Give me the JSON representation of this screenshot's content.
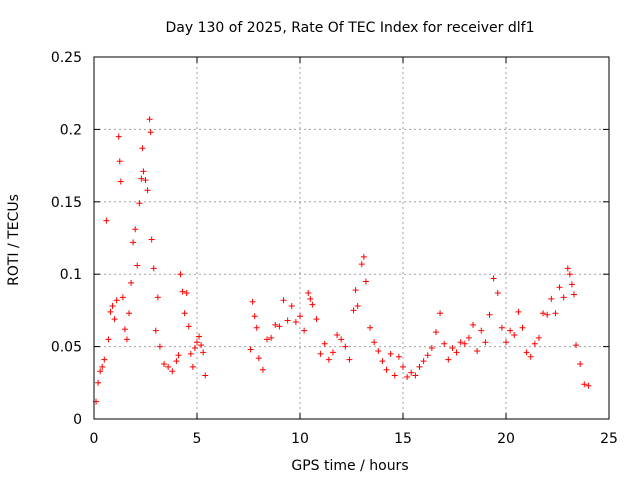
{
  "chart_data": {
    "type": "scatter",
    "title": "Day 130 of 2025, Rate Of TEC Index for receiver dlf1",
    "xlabel": "GPS time / hours",
    "ylabel": "ROTI / TECUs",
    "xlim": [
      0,
      25
    ],
    "ylim": [
      0,
      0.25
    ],
    "xticks": [
      "0",
      "5",
      "10",
      "15",
      "20",
      "25"
    ],
    "yticks": [
      "0",
      "0.05",
      "0.1",
      "0.15",
      "0.2",
      "0.25"
    ],
    "grid": true,
    "marker": "+",
    "color": "#ff0000",
    "series": [
      {
        "points": [
          [
            0.1,
            0.012
          ],
          [
            0.2,
            0.025
          ],
          [
            0.3,
            0.033
          ],
          [
            0.4,
            0.036
          ],
          [
            0.5,
            0.041
          ],
          [
            0.6,
            0.137
          ],
          [
            0.7,
            0.055
          ],
          [
            0.8,
            0.074
          ],
          [
            0.9,
            0.078
          ],
          [
            1.0,
            0.069
          ],
          [
            1.1,
            0.082
          ],
          [
            1.2,
            0.195
          ],
          [
            1.25,
            0.178
          ],
          [
            1.3,
            0.164
          ],
          [
            1.4,
            0.084
          ],
          [
            1.5,
            0.062
          ],
          [
            1.6,
            0.055
          ],
          [
            1.7,
            0.073
          ],
          [
            1.8,
            0.094
          ],
          [
            1.9,
            0.122
          ],
          [
            2.0,
            0.131
          ],
          [
            2.1,
            0.106
          ],
          [
            2.2,
            0.149
          ],
          [
            2.3,
            0.166
          ],
          [
            2.35,
            0.187
          ],
          [
            2.4,
            0.171
          ],
          [
            2.5,
            0.165
          ],
          [
            2.6,
            0.158
          ],
          [
            2.7,
            0.207
          ],
          [
            2.75,
            0.198
          ],
          [
            2.8,
            0.124
          ],
          [
            2.9,
            0.104
          ],
          [
            3.0,
            0.061
          ],
          [
            3.1,
            0.084
          ],
          [
            3.2,
            0.05
          ],
          [
            3.4,
            0.038
          ],
          [
            3.6,
            0.036
          ],
          [
            3.8,
            0.033
          ],
          [
            4.0,
            0.04
          ],
          [
            4.1,
            0.044
          ],
          [
            4.2,
            0.1
          ],
          [
            4.3,
            0.088
          ],
          [
            4.4,
            0.073
          ],
          [
            4.5,
            0.087
          ],
          [
            4.6,
            0.064
          ],
          [
            4.7,
            0.045
          ],
          [
            4.8,
            0.036
          ],
          [
            4.9,
            0.049
          ],
          [
            5.0,
            0.053
          ],
          [
            5.1,
            0.057
          ],
          [
            5.2,
            0.051
          ],
          [
            5.3,
            0.046
          ],
          [
            5.4,
            0.03
          ],
          [
            7.6,
            0.048
          ],
          [
            7.7,
            0.081
          ],
          [
            7.8,
            0.071
          ],
          [
            7.9,
            0.063
          ],
          [
            8.0,
            0.042
          ],
          [
            8.2,
            0.034
          ],
          [
            8.4,
            0.055
          ],
          [
            8.6,
            0.056
          ],
          [
            8.8,
            0.065
          ],
          [
            9.0,
            0.064
          ],
          [
            9.2,
            0.082
          ],
          [
            9.4,
            0.068
          ],
          [
            9.6,
            0.078
          ],
          [
            9.8,
            0.067
          ],
          [
            10.0,
            0.071
          ],
          [
            10.2,
            0.061
          ],
          [
            10.4,
            0.087
          ],
          [
            10.5,
            0.083
          ],
          [
            10.6,
            0.079
          ],
          [
            10.8,
            0.069
          ],
          [
            11.0,
            0.045
          ],
          [
            11.2,
            0.052
          ],
          [
            11.4,
            0.041
          ],
          [
            11.6,
            0.046
          ],
          [
            11.8,
            0.058
          ],
          [
            12.0,
            0.055
          ],
          [
            12.2,
            0.05
          ],
          [
            12.4,
            0.041
          ],
          [
            12.6,
            0.075
          ],
          [
            12.7,
            0.089
          ],
          [
            12.8,
            0.078
          ],
          [
            13.0,
            0.107
          ],
          [
            13.1,
            0.112
          ],
          [
            13.2,
            0.095
          ],
          [
            13.4,
            0.063
          ],
          [
            13.6,
            0.053
          ],
          [
            13.8,
            0.047
          ],
          [
            14.0,
            0.04
          ],
          [
            14.2,
            0.034
          ],
          [
            14.4,
            0.045
          ],
          [
            14.6,
            0.03
          ],
          [
            14.8,
            0.043
          ],
          [
            15.0,
            0.036
          ],
          [
            15.2,
            0.029
          ],
          [
            15.4,
            0.032
          ],
          [
            15.6,
            0.03
          ],
          [
            15.8,
            0.036
          ],
          [
            16.0,
            0.04
          ],
          [
            16.2,
            0.044
          ],
          [
            16.4,
            0.049
          ],
          [
            16.6,
            0.06
          ],
          [
            16.8,
            0.073
          ],
          [
            17.0,
            0.052
          ],
          [
            17.2,
            0.041
          ],
          [
            17.4,
            0.049
          ],
          [
            17.6,
            0.046
          ],
          [
            17.8,
            0.053
          ],
          [
            18.0,
            0.052
          ],
          [
            18.2,
            0.056
          ],
          [
            18.4,
            0.065
          ],
          [
            18.6,
            0.047
          ],
          [
            18.8,
            0.061
          ],
          [
            19.0,
            0.053
          ],
          [
            19.2,
            0.072
          ],
          [
            19.4,
            0.097
          ],
          [
            19.6,
            0.087
          ],
          [
            19.8,
            0.063
          ],
          [
            20.0,
            0.053
          ],
          [
            20.2,
            0.061
          ],
          [
            20.4,
            0.058
          ],
          [
            20.6,
            0.074
          ],
          [
            20.8,
            0.063
          ],
          [
            21.0,
            0.046
          ],
          [
            21.2,
            0.043
          ],
          [
            21.4,
            0.052
          ],
          [
            21.6,
            0.056
          ],
          [
            21.8,
            0.073
          ],
          [
            22.0,
            0.072
          ],
          [
            22.2,
            0.083
          ],
          [
            22.4,
            0.073
          ],
          [
            22.6,
            0.091
          ],
          [
            22.8,
            0.084
          ],
          [
            23.0,
            0.104
          ],
          [
            23.1,
            0.1
          ],
          [
            23.2,
            0.093
          ],
          [
            23.3,
            0.086
          ],
          [
            23.4,
            0.051
          ],
          [
            23.6,
            0.038
          ],
          [
            23.8,
            0.024
          ],
          [
            24.0,
            0.023
          ]
        ]
      }
    ]
  }
}
